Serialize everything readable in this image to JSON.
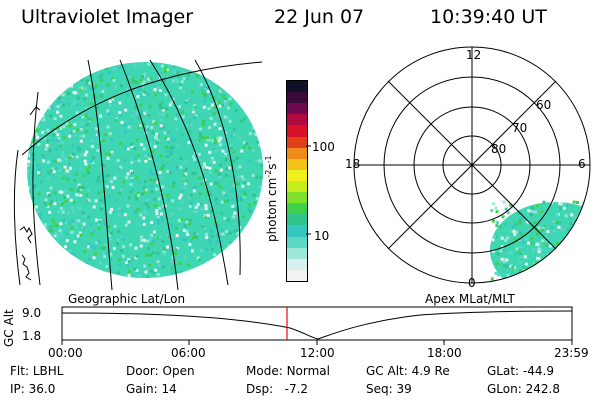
{
  "header": {
    "instrument": "Ultraviolet Imager",
    "date": "22 Jun 07",
    "time": "10:39:40 UT"
  },
  "colorbar": {
    "unit_label": "photon cm",
    "unit_exp1": "-2",
    "unit_mid": "s",
    "unit_exp2": "-1",
    "ticks": [
      "100",
      "10"
    ],
    "colors": [
      "#f2f2f2",
      "#d9f0f0",
      "#9be8d6",
      "#5ad8c8",
      "#36c6c0",
      "#2fc48a",
      "#3fcf4b",
      "#7fe02a",
      "#c6ee1a",
      "#f0f01a",
      "#f3c21a",
      "#f08a1a",
      "#e0401a",
      "#d8102a",
      "#b00a40",
      "#700a50",
      "#3a0a3a",
      "#10102a"
    ]
  },
  "geo_panel": {
    "label": "Geographic Lat/Lon",
    "fill_color": "#3fd6b4"
  },
  "polar_panel": {
    "label": "Apex MLat/MLT",
    "mlt_labels": {
      "top": "12",
      "left": "18",
      "right": "6",
      "bottom": "0"
    },
    "lat_labels": [
      "60",
      "70",
      "80"
    ]
  },
  "timeline": {
    "y_axis_label": "GC Alt",
    "y_ticks": [
      "9.0",
      "1.8"
    ],
    "x_ticks": [
      "00:00",
      "06:00",
      "12:00",
      "18:00",
      "23:59"
    ],
    "marker_color": "#ff0000"
  },
  "info": {
    "flt_label": "Flt:",
    "flt_value": "LBHL",
    "ip_label": "IP:",
    "ip_value": "36.0",
    "door_label": "Door:",
    "door_value": "Open",
    "gain_label": "Gain:",
    "gain_value": "14",
    "mode_label": "Mode:",
    "mode_value": "Normal",
    "dsp_label": "Dsp:",
    "dsp_value": "-7.2",
    "gcalt_label": "GC Alt:",
    "gcalt_value": "4.9 Re",
    "seq_label": "Seq:",
    "seq_value": "39",
    "glat_label": "GLat:",
    "glat_value": "-44.9",
    "glon_label": "GLon:",
    "glon_value": "242.8"
  }
}
